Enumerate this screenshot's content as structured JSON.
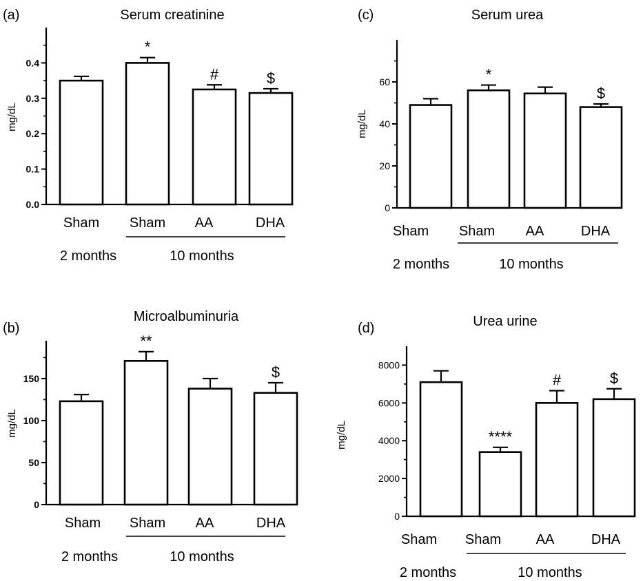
{
  "chart_data": [
    {
      "panel": "(a)",
      "type": "bar",
      "title": "Serum creatinine",
      "ylabel": "mg/dL",
      "categories": [
        "Sham",
        "Sham",
        "AA",
        "DHA"
      ],
      "group_labels": [
        "2 months",
        "10 months"
      ],
      "values": [
        0.35,
        0.4,
        0.325,
        0.315
      ],
      "errors": [
        0.012,
        0.015,
        0.013,
        0.012
      ],
      "significance": [
        "",
        "*",
        "#",
        "$"
      ],
      "ylim": [
        0,
        0.5
      ],
      "yticks": [
        "0.0",
        "0.1",
        "0.2",
        "0.3",
        "0.4"
      ],
      "ytick_values": [
        0,
        0.1,
        0.2,
        0.3,
        0.4
      ]
    },
    {
      "panel": "(b)",
      "type": "bar",
      "title": "Microalbuminuria",
      "ylabel": "mg/dL",
      "categories": [
        "Sham",
        "Sham",
        "AA",
        "DHA"
      ],
      "group_labels": [
        "2 months",
        "10 months"
      ],
      "values": [
        123,
        171,
        138,
        133
      ],
      "errors": [
        8,
        11,
        12,
        12
      ],
      "significance": [
        "",
        "**",
        "",
        "$"
      ],
      "ylim": [
        0,
        195
      ],
      "yticks": [
        "0",
        "50",
        "100",
        "150"
      ],
      "ytick_values": [
        0,
        50,
        100,
        150
      ]
    },
    {
      "panel": "(c)",
      "type": "bar",
      "title": "Serum urea",
      "ylabel": "mg/dL",
      "categories": [
        "Sham",
        "Sham",
        "AA",
        "DHA"
      ],
      "group_labels": [
        "2 months",
        "10 months"
      ],
      "values": [
        49,
        56,
        54.5,
        48
      ],
      "errors": [
        3,
        2.5,
        3,
        1.5
      ],
      "significance": [
        "",
        "*",
        "",
        "$"
      ],
      "ylim": [
        0,
        80
      ],
      "yticks": [
        "0",
        "20",
        "40",
        "60"
      ],
      "ytick_values": [
        0,
        20,
        40,
        60
      ]
    },
    {
      "panel": "(d)",
      "type": "bar",
      "title": "Urea urine",
      "ylabel": "mg/dL",
      "categories": [
        "Sham",
        "Sham",
        "AA",
        "DHA"
      ],
      "group_labels": [
        "2 months",
        "10 months"
      ],
      "values": [
        7100,
        3400,
        6000,
        6200
      ],
      "errors": [
        600,
        250,
        650,
        550
      ],
      "significance": [
        "",
        "****",
        "#",
        "$"
      ],
      "ylim": [
        0,
        9000
      ],
      "yticks": [
        "0",
        "2000",
        "4000",
        "6000",
        "8000"
      ],
      "ytick_values": [
        0,
        2000,
        4000,
        6000,
        8000
      ]
    }
  ]
}
